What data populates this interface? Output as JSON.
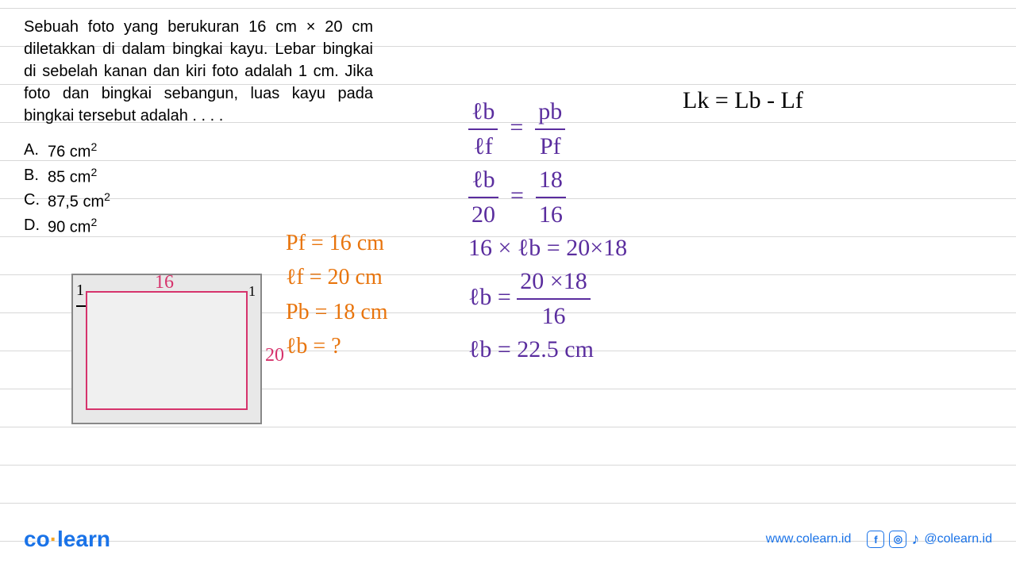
{
  "question": {
    "text": "Sebuah foto yang berukuran 16 cm × 20 cm diletakkan di dalam bingkai kayu. Lebar bingkai di sebelah kanan dan kiri foto adalah 1 cm. Jika foto dan bingkai sebangun, luas kayu pada bingkai tersebut adalah . . . .",
    "options": {
      "a": "76 cm",
      "b": "85 cm",
      "c": "87,5 cm",
      "d": "90 cm"
    }
  },
  "diagram": {
    "top_label": "16",
    "left_gap": "1",
    "right_gap": "1",
    "side_label": "20",
    "colors": {
      "frame_border": "#888888",
      "inner_border": "#d6336c",
      "fill": "#e8e8e8"
    }
  },
  "given": {
    "line1": "Pf = 16 cm",
    "line2": "ℓf = 20 cm",
    "line3": "Pb = 18 cm",
    "line4": "ℓb = ?",
    "color": "#e8740c"
  },
  "calc": {
    "eq1_l_num": "ℓb",
    "eq1_l_den": "ℓf",
    "eq1_r_num": "pb",
    "eq1_r_den": "Pf",
    "eq2_l_num": "ℓb",
    "eq2_l_den": "20",
    "eq2_r_num": "18",
    "eq2_r_den": "16",
    "line3": "16 × ℓb = 20×18",
    "line4_lhs": "ℓb =",
    "line4_num": "20 ×18",
    "line4_den": "16",
    "line5": "ℓb = 22.5 cm",
    "color": "#5a2d9e"
  },
  "answer": {
    "text": "Lk = Lb - Lf",
    "color": "#000000"
  },
  "footer": {
    "logo_co": "co",
    "logo_learn": "learn",
    "url": "www.colearn.id",
    "handle": "@colearn.id"
  },
  "colors": {
    "ruled_line": "#d8d8d8",
    "brand_blue": "#1a73e8",
    "brand_orange": "#f5a623"
  }
}
